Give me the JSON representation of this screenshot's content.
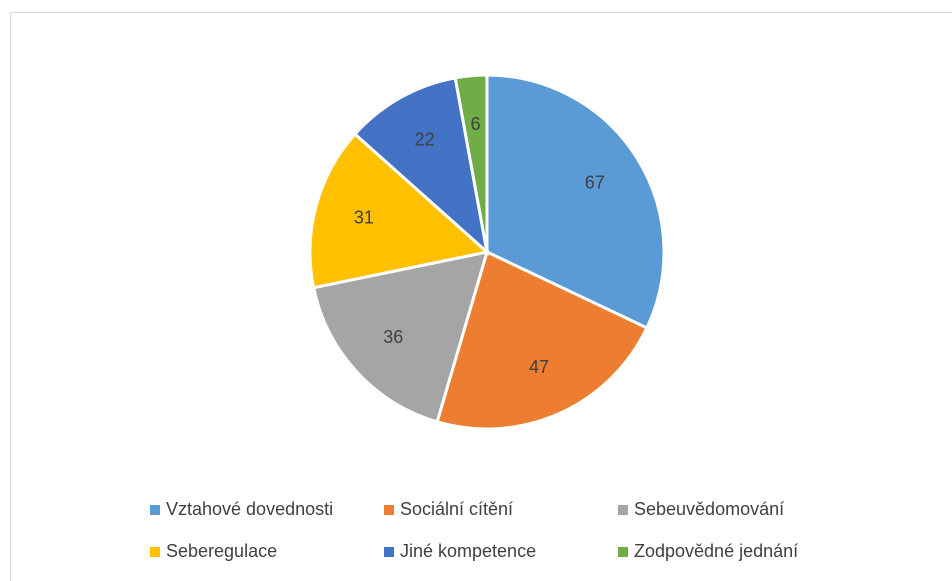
{
  "chart_data": {
    "type": "pie",
    "categories": [
      "Vztahové dovednosti",
      "Sociální cítění",
      "Sebeuvědomování",
      "Seberegulace",
      "Jiné kompetence",
      "Zodpovědné jednání"
    ],
    "values": [
      67,
      47,
      36,
      31,
      22,
      6
    ],
    "colors": [
      "#5b9bd5",
      "#ed7d31",
      "#a5a5a5",
      "#ffc000",
      "#4472c4",
      "#70ad47"
    ],
    "legend": "bottom"
  }
}
